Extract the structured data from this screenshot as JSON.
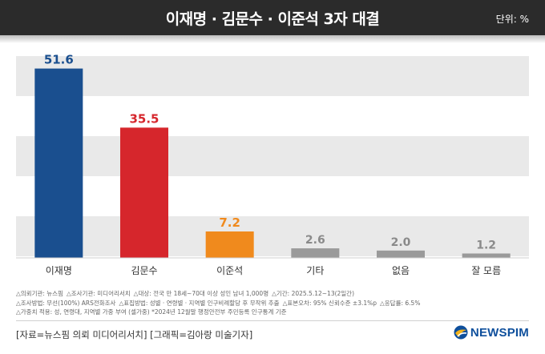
{
  "header": {
    "title": "이재명 · 김문수 · 이준석 3자 대결",
    "unit": "단위: %"
  },
  "chart_data": {
    "type": "bar",
    "categories": [
      "이재명",
      "김문수",
      "이준석",
      "기타",
      "없음",
      "잘 모름"
    ],
    "values": [
      51.6,
      35.5,
      7.2,
      2.6,
      2.0,
      1.2
    ],
    "value_labels": [
      "51.6",
      "35.5",
      "7.2",
      "2.6",
      "2.0",
      "1.2"
    ],
    "ylim": [
      0,
      55
    ],
    "grid": "alternating horizontal bands",
    "colors": {
      "bars": [
        "#1a4f8f",
        "#d6262c",
        "#f08a1d",
        "#9a9a9a",
        "#9a9a9a",
        "#9a9a9a"
      ],
      "labels": [
        "#1a4f8f",
        "#d6262c",
        "#f08a1d",
        "#8a8a8a",
        "#8a8a8a",
        "#8a8a8a"
      ],
      "band": "#e9e9e9"
    }
  },
  "footnotes": {
    "line1": [
      "△의뢰기관: 뉴스핌",
      "△조사기관: 미디어리서치",
      "△대상: 전국 만 18세~70대 이상 성인 남녀 1,000명",
      "△기간: 2025.5.12~13(2일간)"
    ],
    "line2": [
      "△조사방법: 무선(100%) ARS전화조사",
      "△표집방법: 성별 · 연령별 · 지역별 인구비례할당 후 무작위 추출",
      "△표본오차: 95% 신뢰수준 ±3.1%p",
      "△응답률: 6.5%"
    ],
    "line3": [
      "△가중치 적용: 성, 연령대, 지역별 가중 부여 (셀가중) *2024년 12월말 행정안전부 주민등록 인구통계 기준"
    ]
  },
  "source": "[자료=뉴스핌 의뢰 미디어리서치] [그래픽=김아랑 미술기자]",
  "brand": {
    "name": "NEWSPIM",
    "logo_icon": "newspim-swirl-icon"
  }
}
